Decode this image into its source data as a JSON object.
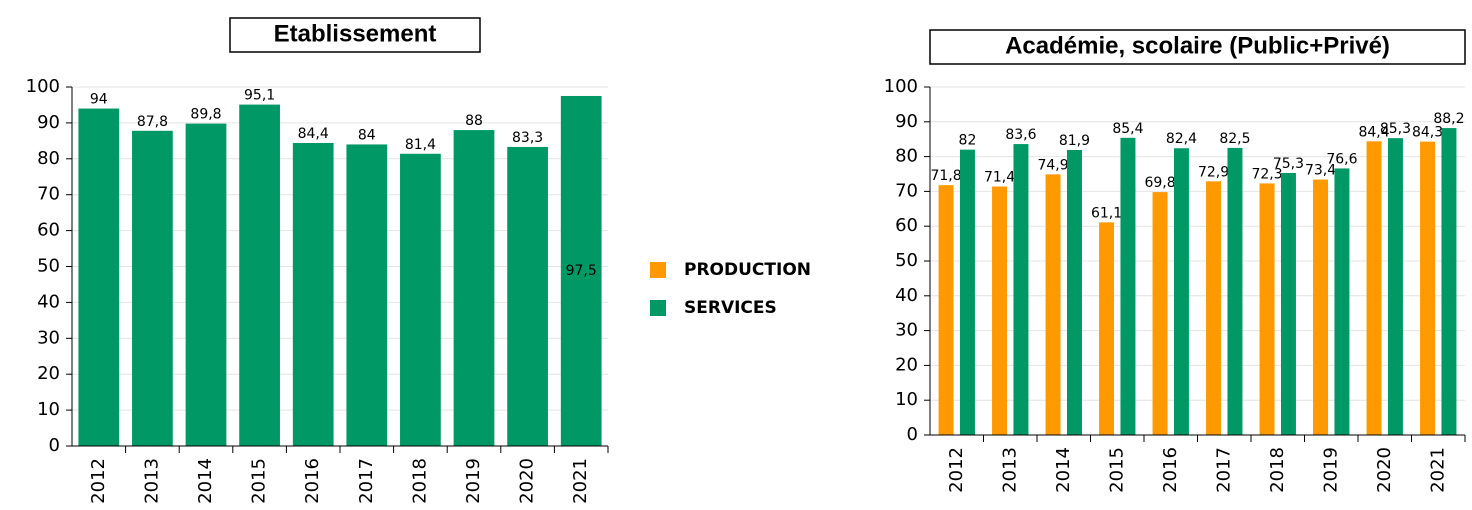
{
  "chart_data": [
    {
      "type": "bar",
      "title": "Etablissement",
      "categories": [
        "2012",
        "2013",
        "2014",
        "2015",
        "2016",
        "2017",
        "2018",
        "2019",
        "2020",
        "2021"
      ],
      "series": [
        {
          "name": "SERVICES",
          "color": "#009966",
          "values": [
            94,
            87.8,
            89.8,
            95.1,
            84.4,
            84,
            81.4,
            88,
            83.3,
            97.5
          ],
          "value_labels": [
            "94",
            "87,8",
            "89,8",
            "95,1",
            "84,4",
            "84",
            "81,4",
            "88",
            "83,3",
            "97,5"
          ]
        }
      ],
      "ylim": [
        0,
        100
      ],
      "yticks": [
        0,
        10,
        20,
        30,
        40,
        50,
        60,
        70,
        80,
        90,
        100
      ],
      "grid": true
    },
    {
      "type": "bar",
      "title": "Académie, scolaire (Public+Privé)",
      "categories": [
        "2012",
        "2013",
        "2014",
        "2015",
        "2016",
        "2017",
        "2018",
        "2019",
        "2020",
        "2021"
      ],
      "series": [
        {
          "name": "PRODUCTION",
          "color": "#ff9900",
          "values": [
            71.8,
            71.4,
            74.9,
            61.1,
            69.8,
            72.9,
            72.3,
            73.4,
            84.4,
            84.3
          ],
          "value_labels": [
            "71,8",
            "71,4",
            "74,9",
            "61,1",
            "69,8",
            "72,9",
            "72,3",
            "73,4",
            "84,4",
            "84,3"
          ]
        },
        {
          "name": "SERVICES",
          "color": "#009966",
          "values": [
            82,
            83.6,
            81.9,
            85.4,
            82.4,
            82.5,
            75.3,
            76.6,
            85.3,
            88.2
          ],
          "value_labels": [
            "82",
            "83,6",
            "81,9",
            "85,4",
            "82,4",
            "82,5",
            "75,3",
            "76,6",
            "85,3",
            "88,2"
          ]
        }
      ],
      "ylim": [
        0,
        100
      ],
      "yticks": [
        0,
        10,
        20,
        30,
        40,
        50,
        60,
        70,
        80,
        90,
        100
      ],
      "grid": true,
      "legend": "between"
    }
  ]
}
